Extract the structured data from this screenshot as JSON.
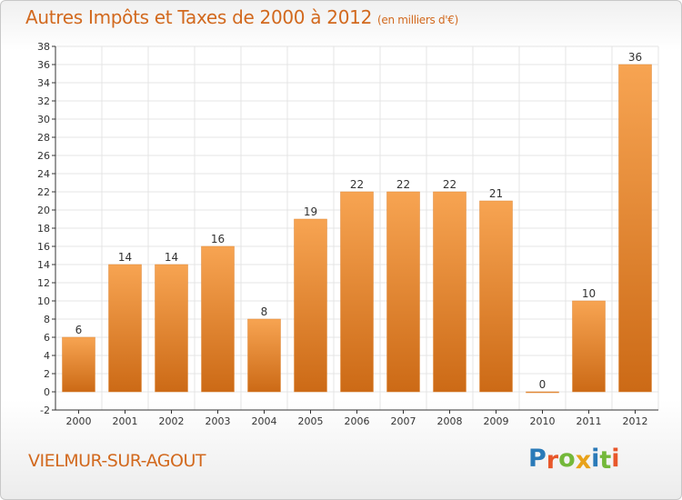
{
  "title": {
    "main": "Autres Impôts et Taxes de 2000 à 2012",
    "unit": "(en milliers d'€)"
  },
  "location": "VIELMUR-SUR-AGOUT",
  "brand": {
    "text": "Proxiti",
    "letter_colors": [
      "#2a7ab8",
      "#e8572a",
      "#74b83a",
      "#e8a21a",
      "#2a7ab8",
      "#74b83a",
      "#e8572a"
    ]
  },
  "colors": {
    "bar_top": "#f7a452",
    "bar_bottom": "#cc6a16",
    "text": "#d2691e",
    "axis": "#333333",
    "grid": "#e4e4e4"
  },
  "chart_data": {
    "type": "bar",
    "title": "Autres Impôts et Taxes de 2000 à 2012",
    "xlabel": "",
    "ylabel": "",
    "categories": [
      "2000",
      "2001",
      "2002",
      "2003",
      "2004",
      "2005",
      "2006",
      "2007",
      "2008",
      "2009",
      "2010",
      "2011",
      "2012"
    ],
    "values": [
      6,
      14,
      14,
      16,
      8,
      19,
      22,
      22,
      22,
      21,
      0,
      10,
      36
    ],
    "data_labels": [
      "6",
      "14",
      "14",
      "16",
      "8",
      "19",
      "22",
      "22",
      "22",
      "21",
      "0",
      "10",
      "36"
    ],
    "ylim": [
      -2,
      38
    ],
    "yticks": [
      "-2",
      "0",
      "2",
      "4",
      "6",
      "8",
      "10",
      "12",
      "14",
      "16",
      "18",
      "20",
      "22",
      "24",
      "26",
      "28",
      "30",
      "32",
      "34",
      "36",
      "38"
    ],
    "grid": true
  }
}
